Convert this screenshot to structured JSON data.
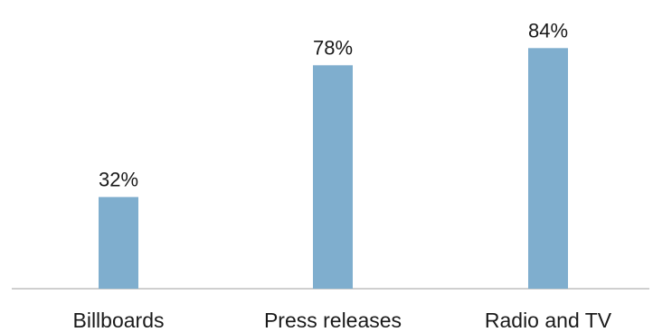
{
  "chart_data": {
    "type": "bar",
    "categories": [
      "Billboards",
      "Press releases",
      "Radio and TV"
    ],
    "values": [
      32,
      78,
      84
    ],
    "value_labels": [
      "32%",
      "78%",
      "84%"
    ],
    "title": "",
    "xlabel": "",
    "ylabel": "",
    "ylim": [
      0,
      100
    ],
    "grid": false,
    "legend": "none",
    "bar_color": "#7FAECE",
    "axis_color": "#BFBFBF"
  }
}
